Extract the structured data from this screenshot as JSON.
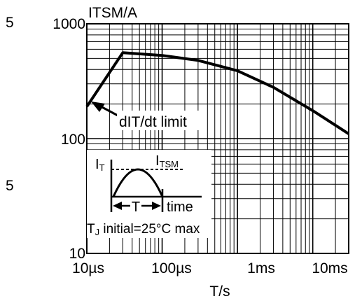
{
  "chart_data": {
    "type": "line",
    "y_axis_title": "ITSM/A",
    "x_axis_title": "T/s",
    "x_scale": "log",
    "y_scale": "log",
    "xlim": [
      "10µs",
      "30ms"
    ],
    "ylim": [
      10,
      1000
    ],
    "grid": true,
    "x_ticks": [
      "10µs",
      "100µs",
      "1ms",
      "10ms"
    ],
    "y_ticks": [
      "1000",
      "100",
      "10"
    ],
    "y_minor_labels": [
      "5",
      "5"
    ],
    "series": [
      {
        "points": [
          {
            "t_us": 10,
            "i": 190
          },
          {
            "t_us": 30,
            "i": 560
          },
          {
            "t_us": 100,
            "i": 530
          },
          {
            "t_us": 300,
            "i": 480
          },
          {
            "t_us": 1000,
            "i": 390
          },
          {
            "t_us": 3000,
            "i": 280
          },
          {
            "t_us": 10000,
            "i": 175
          },
          {
            "t_us": 30000,
            "i": 110
          }
        ]
      }
    ],
    "annotations": {
      "didt_label": "dIT/dt limit",
      "inset_it": "I",
      "inset_it_sub": "T",
      "inset_itsm": "I",
      "inset_itsm_sub": "TSM",
      "inset_t": "T",
      "inset_time": "time",
      "tj_prefix": "T",
      "tj_sub": "J",
      "tj_rest": " initial=25°C max"
    }
  }
}
